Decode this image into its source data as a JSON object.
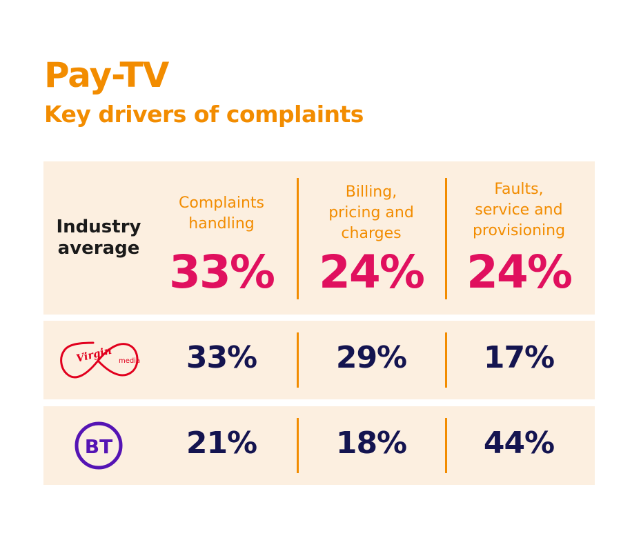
{
  "header": {
    "title": "Pay-TV",
    "subtitle": "Key drivers of complaints"
  },
  "colors": {
    "accent": "#f28c00",
    "industry_value": "#e0105e",
    "provider_value": "#141450",
    "panel_bg": "#fcefe0",
    "virgin_red": "#e1001e",
    "bt_purple": "#5514b4"
  },
  "chart_data": {
    "type": "table",
    "categories": [
      "Complaints handling",
      "Billing, pricing and charges",
      "Faults, service and provisioning"
    ],
    "category_lines": [
      [
        "Complaints",
        "handling"
      ],
      [
        "Billing,",
        "pricing and",
        "charges"
      ],
      [
        "Faults,",
        "service and",
        "provisioning"
      ]
    ],
    "rows": [
      {
        "label_lines": [
          "Industry",
          "average"
        ],
        "values": [
          33,
          24,
          24
        ],
        "display": [
          "33%",
          "24%",
          "24%"
        ]
      },
      {
        "logo": "virgin-media-logo",
        "logo_text": [
          "Virgin",
          "media"
        ],
        "values": [
          33,
          29,
          17
        ],
        "display": [
          "33%",
          "29%",
          "17%"
        ]
      },
      {
        "logo": "bt-logo",
        "logo_text": [
          "BT"
        ],
        "values": [
          21,
          18,
          44
        ],
        "display": [
          "21%",
          "18%",
          "44%"
        ]
      }
    ],
    "unit": "%"
  }
}
